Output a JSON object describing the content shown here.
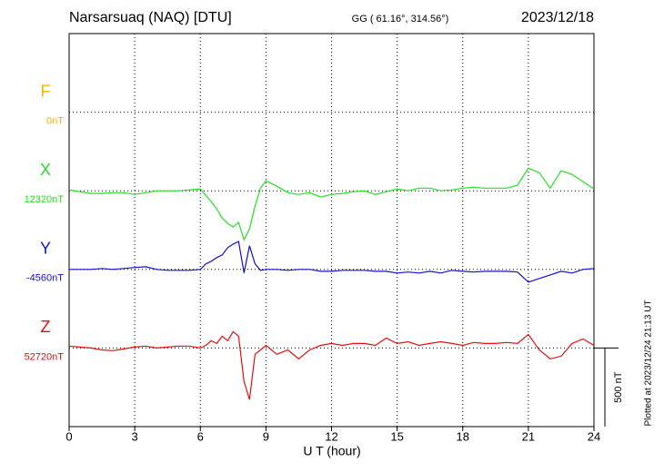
{
  "chart_data": {
    "type": "line",
    "title": "Narsarsuaq (NAQ)  [DTU]",
    "subtitle": "GG ( 61.16°, 314.56°)",
    "date": "2023/12/18",
    "xlabel": "U T (hour)",
    "note": "Plotted at 2023/12/24 21:13 UT",
    "scale_bar": {
      "value": 500,
      "label": "500 nT"
    },
    "xlim": [
      0,
      24
    ],
    "xticks": [
      0,
      3,
      6,
      9,
      12,
      15,
      18,
      21,
      24
    ],
    "ylim": [
      0,
      2500
    ],
    "yticks": [
      500,
      1000,
      1500,
      2000
    ],
    "grid": true,
    "x": [
      0,
      0.5,
      1,
      1.5,
      2,
      2.5,
      3,
      3.5,
      4,
      4.5,
      5,
      5.5,
      6,
      6.25,
      6.5,
      6.75,
      7,
      7.25,
      7.5,
      7.75,
      8,
      8.25,
      8.5,
      8.75,
      9,
      9.5,
      10,
      10.5,
      11,
      11.5,
      12,
      12.5,
      13,
      13.5,
      14,
      14.5,
      15,
      15.5,
      16,
      16.5,
      17,
      17.5,
      18,
      18.5,
      19,
      19.5,
      20,
      20.5,
      21,
      21.5,
      22,
      22.5,
      23,
      23.5,
      24
    ],
    "series": [
      {
        "name": "F",
        "baseline_label": "0nT",
        "color": "#f0b400",
        "values": [
          null,
          null,
          null,
          null,
          null,
          null,
          null,
          null,
          null,
          null,
          null,
          null,
          null,
          null,
          null,
          null,
          null,
          null,
          null,
          null,
          null,
          null,
          null,
          null,
          null,
          null,
          null,
          null,
          null,
          null,
          null,
          null,
          null,
          null,
          null,
          null,
          null,
          null,
          null,
          null,
          null,
          null,
          null,
          null,
          null,
          null,
          null,
          null,
          null,
          null,
          null,
          null,
          null,
          null,
          null
        ]
      },
      {
        "name": "X",
        "baseline_label": "12320nT",
        "color": "#22e022",
        "values": [
          6,
          -6,
          -17,
          -17,
          -12,
          -12,
          -23,
          -12,
          0,
          0,
          0,
          6,
          12,
          -29,
          -69,
          -115,
          -173,
          -207,
          -230,
          -201,
          -311,
          -242,
          -98,
          17,
          63,
          29,
          -12,
          -23,
          -12,
          -40,
          -23,
          -17,
          -6,
          0,
          -23,
          -6,
          12,
          0,
          17,
          17,
          0,
          6,
          17,
          23,
          17,
          17,
          17,
          35,
          144,
          115,
          17,
          127,
          104,
          58,
          12
        ]
      },
      {
        "name": "Y",
        "baseline_label": "-4560nT",
        "color": "#1010d0",
        "values": [
          0,
          0,
          0,
          6,
          0,
          6,
          12,
          17,
          0,
          -6,
          -6,
          -6,
          0,
          35,
          52,
          75,
          92,
          138,
          161,
          178,
          -23,
          150,
          35,
          -6,
          0,
          0,
          -6,
          0,
          0,
          -12,
          -12,
          -6,
          -6,
          -6,
          -12,
          -12,
          -23,
          -17,
          -23,
          -12,
          -23,
          -6,
          -12,
          -17,
          -12,
          -12,
          -12,
          -17,
          -81,
          -58,
          -35,
          -12,
          -23,
          0,
          6
        ]
      },
      {
        "name": "Z",
        "baseline_label": "52720nT",
        "color": "#e01010",
        "values": [
          12,
          6,
          0,
          -12,
          -17,
          -6,
          6,
          12,
          0,
          6,
          12,
          12,
          0,
          17,
          46,
          29,
          75,
          46,
          104,
          75,
          -213,
          -328,
          -40,
          -12,
          17,
          -40,
          -12,
          -69,
          -12,
          17,
          29,
          17,
          29,
          29,
          17,
          63,
          29,
          40,
          17,
          29,
          40,
          29,
          17,
          35,
          29,
          29,
          35,
          29,
          86,
          -12,
          -69,
          -52,
          29,
          58,
          17
        ]
      }
    ]
  }
}
